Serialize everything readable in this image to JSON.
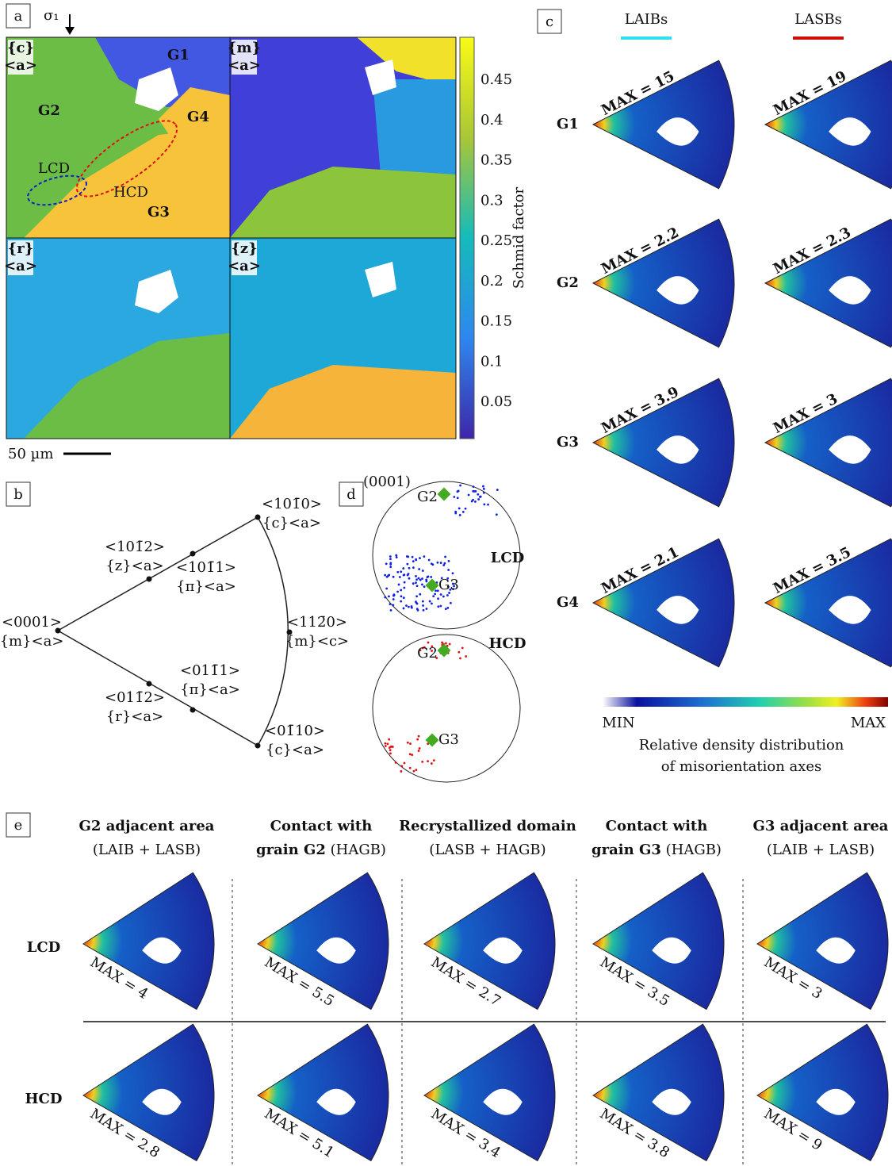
{
  "panel_a": {
    "label": "a",
    "stress": "σ₁",
    "grains": [
      "G1",
      "G2",
      "G3",
      "G4"
    ],
    "domains": [
      "LCD",
      "HCD"
    ],
    "maps": [
      {
        "plane": "{c}",
        "direction": "<a>"
      },
      {
        "plane": "{m}",
        "direction": "<a>"
      },
      {
        "plane": "{r}",
        "direction": "<a>"
      },
      {
        "plane": "{z}",
        "direction": "<a>"
      }
    ],
    "colorbar_title": "Schmid factor",
    "colorbar_ticks": [
      "0.45",
      "0.4",
      "0.35",
      "0.3",
      "0.25",
      "0.2",
      "0.15",
      "0.1",
      "0.05"
    ],
    "scale_bar": "50 µm"
  },
  "panel_b": {
    "label": "b",
    "nodes": [
      {
        "direction": "<0001>",
        "system": "{m}<a>"
      },
      {
        "direction": "<101̄2>",
        "system": "{z}<a>"
      },
      {
        "direction": "<101̄1>",
        "system": "{π}<a>"
      },
      {
        "direction": "<101̄0>",
        "system": "{c}<a>"
      },
      {
        "direction": "<112̄0>",
        "system": "{m}<c>"
      },
      {
        "direction": "<011̄1>",
        "system": "{π}<a>"
      },
      {
        "direction": "<011̄2>",
        "system": "{r}<a>"
      },
      {
        "direction": "<01̄10>",
        "system": "{c}<a>"
      }
    ]
  },
  "panel_c": {
    "label": "c",
    "columns": [
      "LAIBs",
      "LASBs"
    ],
    "rows": [
      {
        "grain": "G1",
        "max": [
          "MAX = 15",
          "MAX = 19"
        ]
      },
      {
        "grain": "G2",
        "max": [
          "MAX = 2.2",
          "MAX = 2.3"
        ]
      },
      {
        "grain": "G3",
        "max": [
          "MAX = 3.9",
          "MAX = 3"
        ]
      },
      {
        "grain": "G4",
        "max": [
          "MAX = 2.1",
          "MAX = 3.5"
        ]
      }
    ],
    "scale_min": "MIN",
    "scale_max": "MAX",
    "caption": [
      "Relative density distribution",
      "of misorientation axes"
    ]
  },
  "panel_d": {
    "label": "d",
    "pole": "(0001)",
    "plots": [
      {
        "domain": "LCD",
        "grains": [
          "G2",
          "G3"
        ]
      },
      {
        "domain": "HCD",
        "grains": [
          "G2",
          "G3"
        ]
      }
    ]
  },
  "panel_e": {
    "label": "e",
    "columns": [
      {
        "title": [
          "G2 adjacent area"
        ],
        "note": "(LAIB + LASB)"
      },
      {
        "title": [
          "Contact with",
          "grain G2"
        ],
        "note": "(HAGB)"
      },
      {
        "title": [
          "Recrystallized domain"
        ],
        "note": "(LASB + HAGB)"
      },
      {
        "title": [
          "Contact with",
          "grain G3"
        ],
        "note": "(HAGB)"
      },
      {
        "title": [
          "G3 adjacent area"
        ],
        "note": "(LAIB + LASB)"
      }
    ],
    "rows": [
      {
        "domain": "LCD",
        "max": [
          "MAX = 4",
          "MAX = 5.5",
          "MAX = 2.7",
          "MAX = 3.5",
          "MAX = 3"
        ]
      },
      {
        "domain": "HCD",
        "max": [
          "MAX = 2.8",
          "MAX = 5.1",
          "MAX = 3.4",
          "MAX = 3.8",
          "MAX = 9"
        ]
      }
    ]
  }
}
